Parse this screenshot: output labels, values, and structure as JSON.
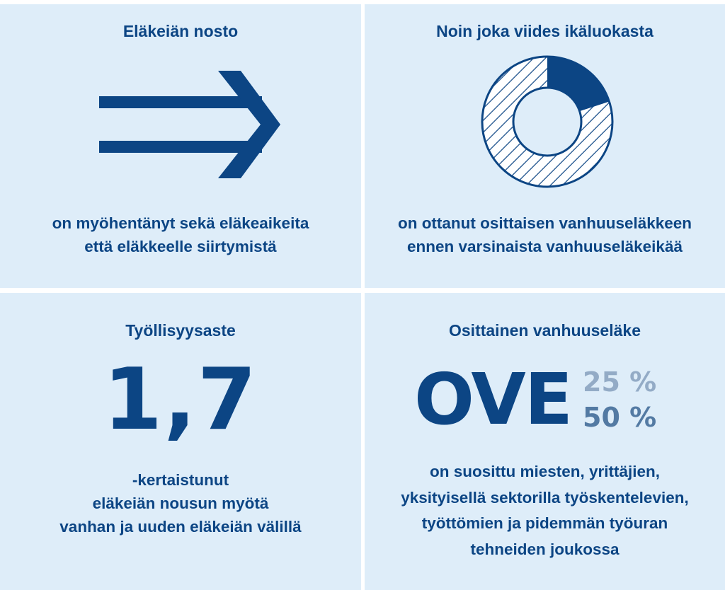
{
  "panels": [
    {
      "title": "Eläkeiän nosto",
      "caption": [
        "on myöhentänyt sekä eläkeaikeita",
        "että eläkkeelle siirtymistä"
      ],
      "icon": "double-arrow-right-icon"
    },
    {
      "title": "Noin joka viides ikäluokasta",
      "caption": [
        "on ottanut osittaisen vanhuuseläkkeen",
        "ennen varsinaista vanhuuseläkeikää"
      ],
      "icon": "donut-icon",
      "share": 0.2
    },
    {
      "title": "Työllisyysaste",
      "value": "1,7",
      "caption": [
        "-kertaistunut",
        "eläkeiän nousun myötä",
        "vanhan ja uuden eläkeiän välillä"
      ]
    },
    {
      "title": "Osittainen vanhuuseläke",
      "acronym": "OVE",
      "options": [
        "25 %",
        "50 %"
      ],
      "caption": [
        "on suosittu miesten, yrittäjien,",
        "yksityisellä sektorilla työskentelevien,",
        "työttömien ja pidemmän työuran",
        "tehneiden joukossa"
      ]
    }
  ],
  "colors": {
    "primary": "#0c4584",
    "panel_bg": "#deedf9",
    "pct25": "#93abc6",
    "pct50": "#537aa3",
    "divider": "#ffffff"
  }
}
